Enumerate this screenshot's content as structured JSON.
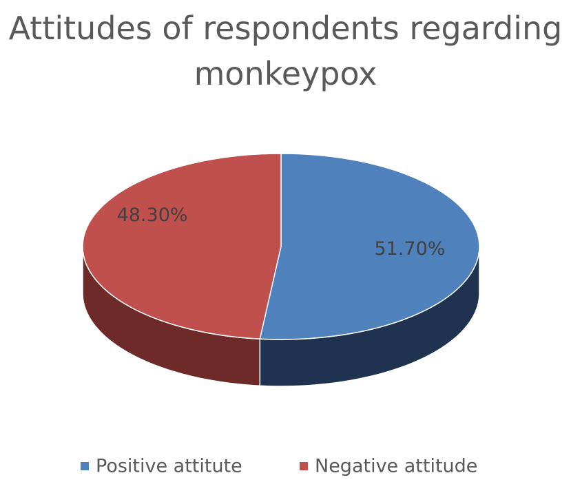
{
  "chart_data": {
    "type": "pie",
    "title": "Attitudes of respondents regarding monkeypox",
    "categories": [
      "Positive attitute",
      "Negative attitude"
    ],
    "values": [
      51.7,
      48.3
    ],
    "value_labels": [
      "51.70%",
      "48.30%"
    ],
    "colors": [
      "#4f81bd",
      "#c0504d"
    ],
    "side_colors": [
      "#1f3350",
      "#6e2a28"
    ]
  }
}
